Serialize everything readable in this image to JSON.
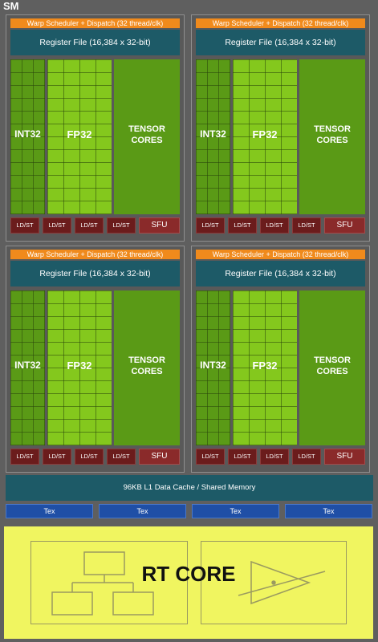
{
  "sm_label": "SM",
  "quadrants": [
    {
      "warp_scheduler": "Warp Scheduler + Dispatch (32 thread/clk)",
      "register_file": "Register File (16,384 x 32-bit)",
      "int_unit": "INT32",
      "fp_unit": "FP32",
      "tensor_line1": "TENSOR",
      "tensor_line2": "CORES",
      "ldst": [
        "LD/ST",
        "LD/ST",
        "LD/ST",
        "LD/ST"
      ],
      "sfu": "SFU"
    },
    {
      "warp_scheduler": "Warp Scheduler + Dispatch (32 thread/clk)",
      "register_file": "Register File (16,384 x 32-bit)",
      "int_unit": "INT32",
      "fp_unit": "FP32",
      "tensor_line1": "TENSOR",
      "tensor_line2": "CORES",
      "ldst": [
        "LD/ST",
        "LD/ST",
        "LD/ST",
        "LD/ST"
      ],
      "sfu": "SFU"
    },
    {
      "warp_scheduler": "Warp Scheduler + Dispatch (32 thread/clk)",
      "register_file": "Register File (16,384 x 32-bit)",
      "int_unit": "INT32",
      "fp_unit": "FP32",
      "tensor_line1": "TENSOR",
      "tensor_line2": "CORES",
      "ldst": [
        "LD/ST",
        "LD/ST",
        "LD/ST",
        "LD/ST"
      ],
      "sfu": "SFU"
    },
    {
      "warp_scheduler": "Warp Scheduler + Dispatch (32 thread/clk)",
      "register_file": "Register File (16,384 x 32-bit)",
      "int_unit": "INT32",
      "fp_unit": "FP32",
      "tensor_line1": "TENSOR",
      "tensor_line2": "CORES",
      "ldst": [
        "LD/ST",
        "LD/ST",
        "LD/ST",
        "LD/ST"
      ],
      "sfu": "SFU"
    }
  ],
  "l1_cache": "96KB L1 Data Cache / Shared Memory",
  "tex_units": [
    "Tex",
    "Tex",
    "Tex",
    "Tex"
  ],
  "rt_core": "RT CORE",
  "colors": {
    "background": "#5f5f5f",
    "warp": "#f08a1c",
    "register": "#1d5a67",
    "int": "#5a9a16",
    "fp": "#84c81d",
    "ldst": "#6b1c1c",
    "sfu": "#8a2a2a",
    "tex": "#1f4fa6",
    "rt": "#f0f560"
  }
}
